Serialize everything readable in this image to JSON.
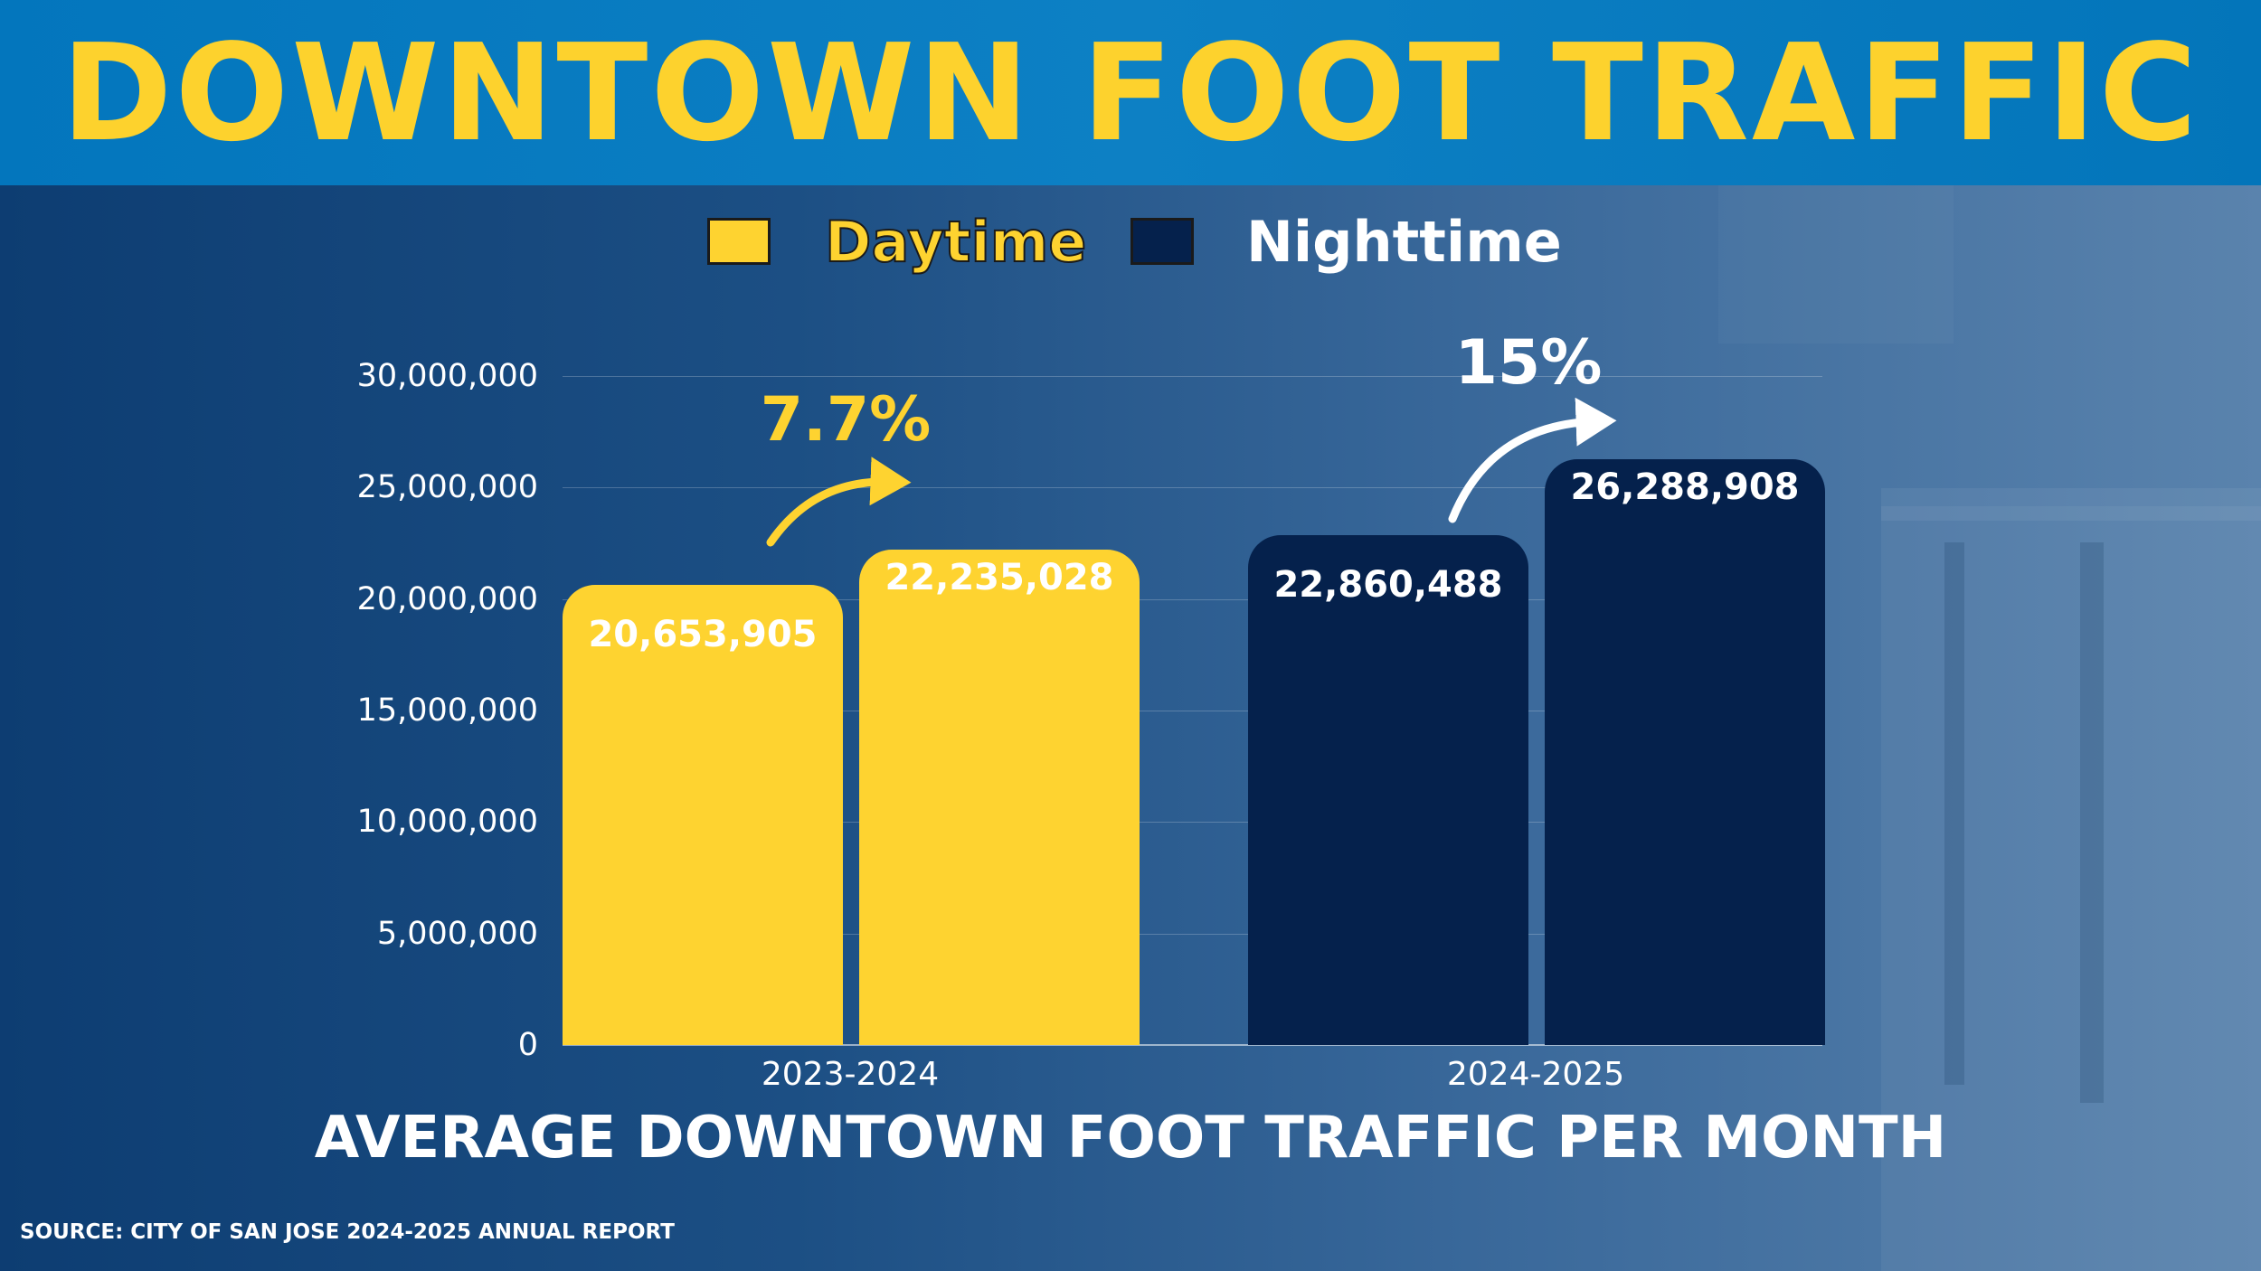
{
  "colors": {
    "daytime": "#fed330",
    "nighttime": "#05214c",
    "title": "#fdd22d",
    "header_bg": "#0376bd"
  },
  "header": {
    "title": "DOWNTOWN FOOT TRAFFIC"
  },
  "legend": [
    {
      "label": "Daytime",
      "color": "#fed330"
    },
    {
      "label": "Nighttime",
      "color": "#05214c"
    }
  ],
  "chart_data": {
    "type": "bar",
    "categories": [
      "2023-2024",
      "2024-2025"
    ],
    "ylim": [
      0,
      30000000
    ],
    "y_ticks": [
      {
        "value": 0,
        "label": "0"
      },
      {
        "value": 5000000,
        "label": "5,000,000"
      },
      {
        "value": 10000000,
        "label": "10,000,000"
      },
      {
        "value": 15000000,
        "label": "15,000,000"
      },
      {
        "value": 20000000,
        "label": "20,000,000"
      },
      {
        "value": 25000000,
        "label": "25,000,000"
      },
      {
        "value": 30000000,
        "label": "30,000,000"
      }
    ],
    "grid": true,
    "legend_position": "top-center",
    "groups": [
      {
        "category": "2023-2024",
        "series": "Daytime",
        "color": "#fed330",
        "bars": [
          {
            "value": 20653905,
            "label": "20,653,905"
          },
          {
            "value": 22235028,
            "label": "22,235,028"
          }
        ],
        "change": "7.7%",
        "change_color": "#fed330"
      },
      {
        "category": "2024-2025",
        "series": "Nighttime",
        "color": "#05214c",
        "bars": [
          {
            "value": 22860488,
            "label": "22,860,488"
          },
          {
            "value": 26288908,
            "label": "26,288,908"
          }
        ],
        "change": "15%",
        "change_color": "#ffffff"
      }
    ],
    "title": "AVERAGE DOWNTOWN FOOT TRAFFIC PER MONTH"
  },
  "source": "SOURCE: CITY OF SAN JOSE 2024-2025 ANNUAL REPORT"
}
